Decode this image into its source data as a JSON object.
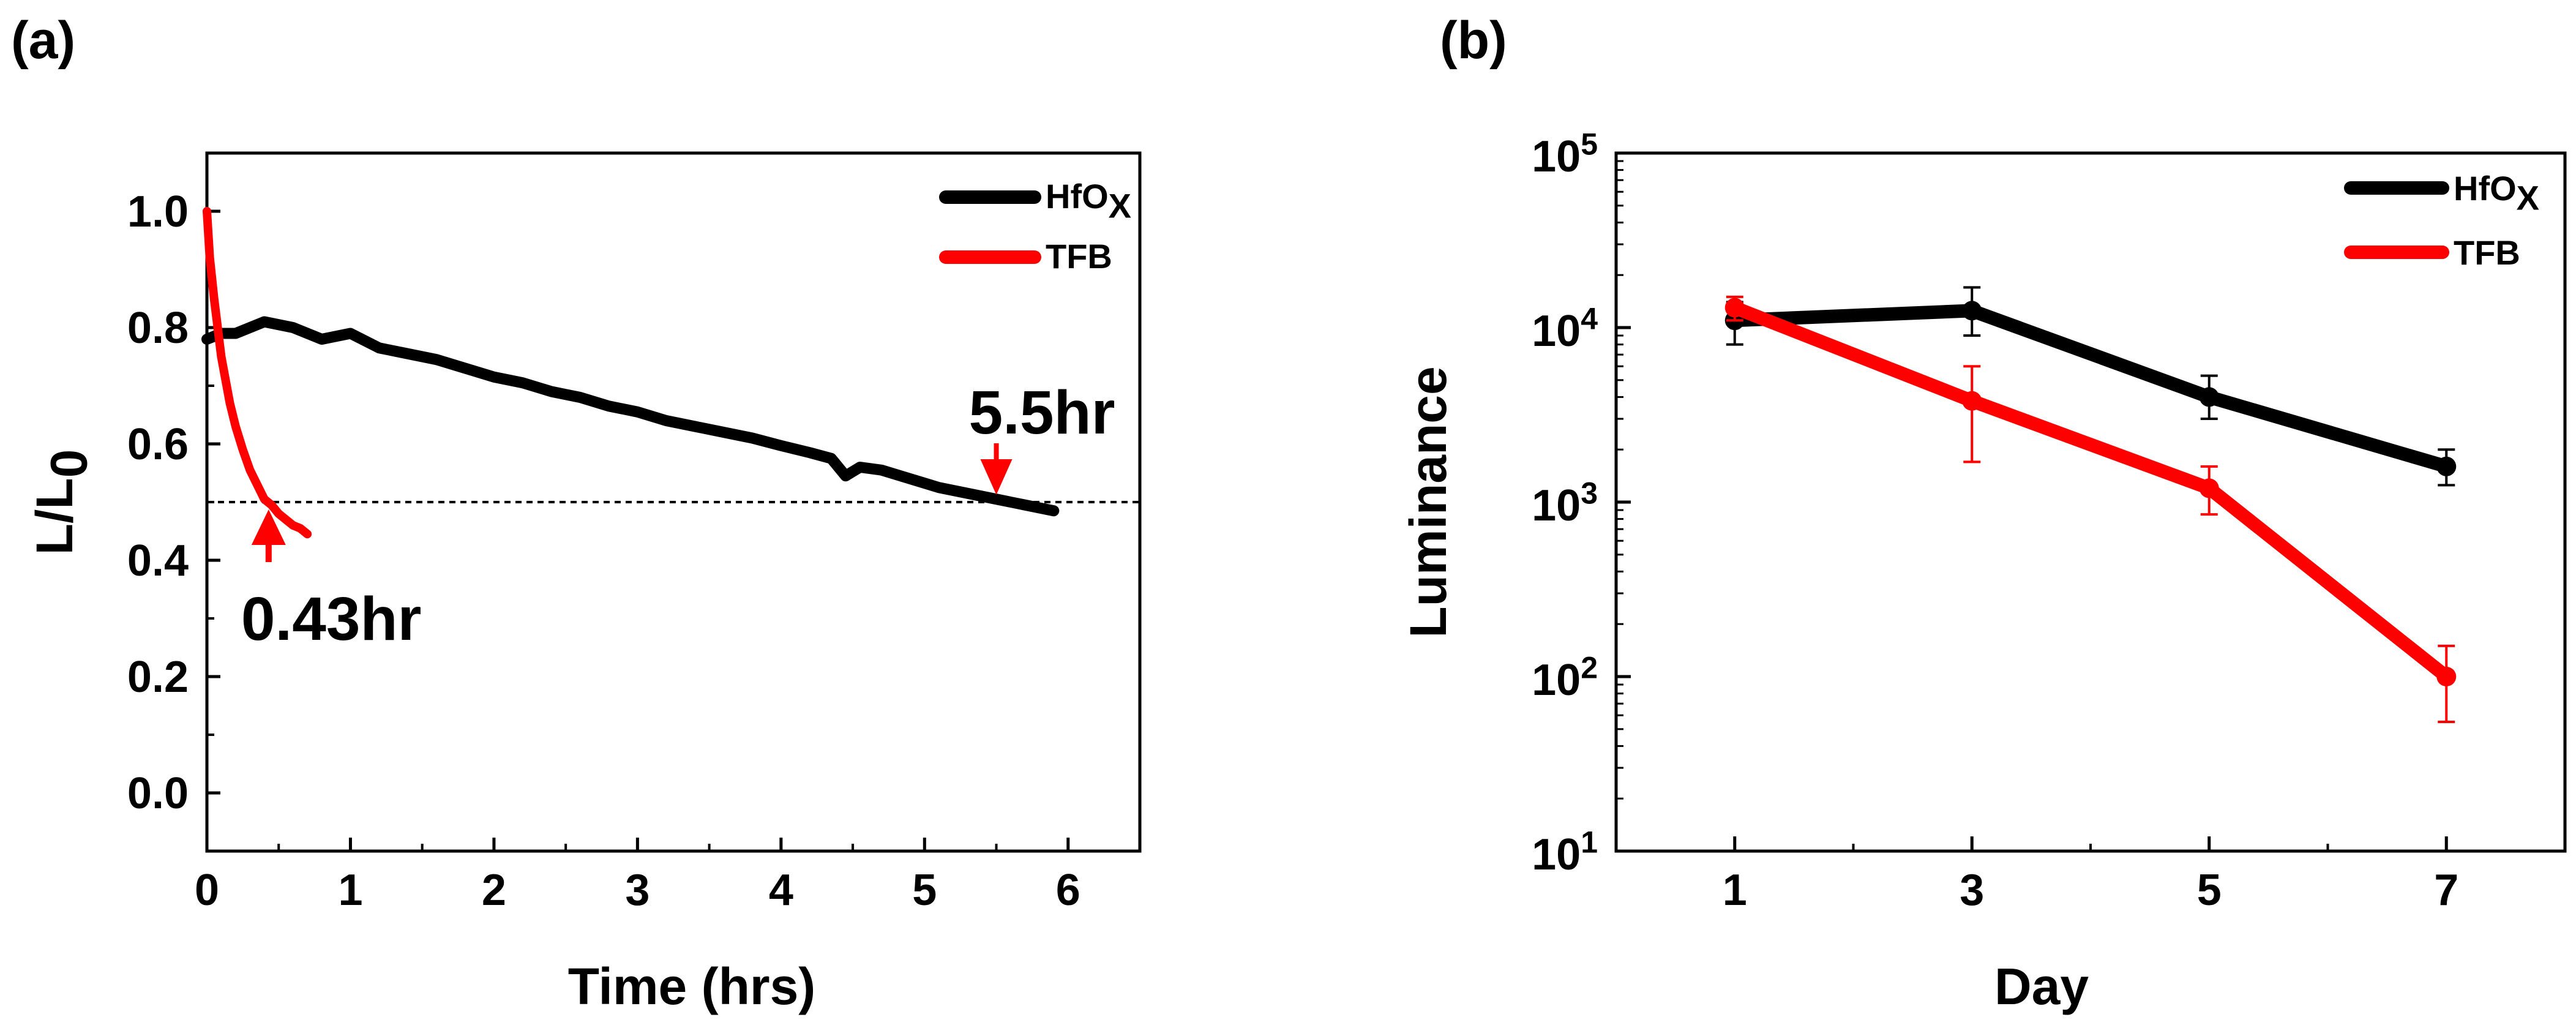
{
  "chart_data": [
    {
      "panel": "(a)",
      "type": "line",
      "xlabel": "Time (hrs)",
      "ylabel_main": "L/L",
      "ylabel_sub": "0",
      "xlim": [
        0,
        6.5
      ],
      "ylim": [
        -0.1,
        1.1
      ],
      "xticks": [
        0,
        1,
        2,
        3,
        4,
        5,
        6
      ],
      "yticks": [
        0.0,
        0.2,
        0.4,
        0.6,
        0.8,
        1.0
      ],
      "ytick_labels": [
        "0.0",
        "0.2",
        "0.4",
        "0.6",
        "0.8",
        "1.0"
      ],
      "reference_line_y": 0.5,
      "series": [
        {
          "name": "HfO",
          "name_sub": "X",
          "color": "#000000",
          "x": [
            0.0,
            0.1,
            0.2,
            0.3,
            0.4,
            0.5,
            0.6,
            0.7,
            0.8,
            0.9,
            1.0,
            1.2,
            1.4,
            1.6,
            1.8,
            2.0,
            2.2,
            2.4,
            2.6,
            2.8,
            3.0,
            3.2,
            3.4,
            3.6,
            3.8,
            4.0,
            4.2,
            4.35,
            4.45,
            4.55,
            4.7,
            4.9,
            5.1,
            5.3,
            5.5,
            5.7,
            5.9
          ],
          "y": [
            0.78,
            0.79,
            0.79,
            0.8,
            0.81,
            0.805,
            0.8,
            0.79,
            0.78,
            0.785,
            0.79,
            0.765,
            0.755,
            0.745,
            0.73,
            0.715,
            0.705,
            0.69,
            0.68,
            0.665,
            0.655,
            0.64,
            0.63,
            0.62,
            0.61,
            0.597,
            0.585,
            0.575,
            0.545,
            0.56,
            0.555,
            0.54,
            0.525,
            0.515,
            0.505,
            0.495,
            0.485
          ]
        },
        {
          "name": "TFB",
          "name_sub": "",
          "color": "#ff0000",
          "x": [
            0.0,
            0.02,
            0.05,
            0.08,
            0.1,
            0.13,
            0.16,
            0.2,
            0.25,
            0.3,
            0.35,
            0.4,
            0.45,
            0.5,
            0.55,
            0.6,
            0.65,
            0.7
          ],
          "y": [
            1.0,
            0.92,
            0.85,
            0.79,
            0.75,
            0.71,
            0.67,
            0.63,
            0.59,
            0.555,
            0.53,
            0.505,
            0.495,
            0.48,
            0.47,
            0.46,
            0.455,
            0.445
          ]
        }
      ],
      "annotations": [
        {
          "text": "5.5hr",
          "x": 5.5,
          "y": 0.5,
          "arrow": "down"
        },
        {
          "text": "0.43hr",
          "x": 0.43,
          "y": 0.5,
          "arrow": "up"
        }
      ],
      "legend": "top-right"
    },
    {
      "panel": "(b)",
      "type": "line",
      "xlabel": "Day",
      "ylabel": "Luminance",
      "yscale": "log",
      "xlim": [
        0,
        8
      ],
      "ylim": [
        10,
        100000
      ],
      "xticks": [
        1,
        3,
        5,
        7
      ],
      "ytick_exponents": [
        "1",
        "2",
        "3",
        "4",
        "5"
      ],
      "ytick_base": "10",
      "series": [
        {
          "name": "HfO",
          "name_sub": "X",
          "color": "#000000",
          "x": [
            1,
            3,
            5,
            7
          ],
          "y": [
            11000,
            12500,
            4000,
            1600
          ],
          "yerr_low": [
            8000,
            9000,
            3000,
            1250
          ],
          "yerr_high": [
            14000,
            17000,
            5300,
            2000
          ]
        },
        {
          "name": "TFB",
          "name_sub": "",
          "color": "#ff0000",
          "x": [
            1,
            3,
            5,
            7
          ],
          "y": [
            13000,
            3800,
            1200,
            100
          ],
          "yerr_low": [
            11000,
            1700,
            850,
            55
          ],
          "yerr_high": [
            15000,
            6000,
            1600,
            150
          ]
        }
      ],
      "legend": "top-right"
    }
  ]
}
